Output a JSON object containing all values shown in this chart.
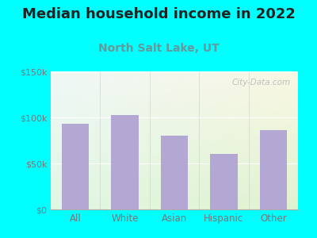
{
  "title": "Median household income in 2022",
  "subtitle": "North Salt Lake, UT",
  "categories": [
    "All",
    "White",
    "Asian",
    "Hispanic",
    "Other"
  ],
  "values": [
    93000,
    103000,
    80000,
    60000,
    86000
  ],
  "bar_color": "#b3a8d4",
  "background_outer": "#00ffff",
  "bg_top_left": "#d8ecd8",
  "bg_top_right": "#e8f0f4",
  "bg_bottom": "#e0f0e0",
  "title_fontsize": 13,
  "subtitle_fontsize": 10,
  "yticks": [
    0,
    50000,
    100000,
    150000
  ],
  "ytick_labels": [
    "$0",
    "$50k",
    "$100k",
    "$150k"
  ],
  "ylim": [
    0,
    150000
  ],
  "watermark": "City-Data.com",
  "tick_color": "#777777",
  "subtitle_color": "#669999",
  "title_color": "#222222"
}
